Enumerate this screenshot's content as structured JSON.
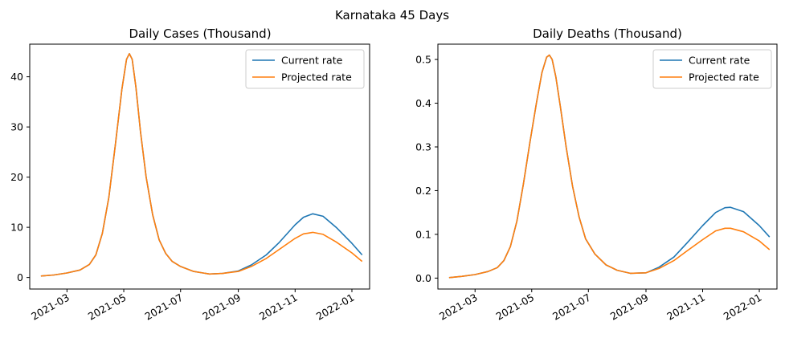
{
  "figure": {
    "suptitle": "Karnataka 45 Days"
  },
  "colors": {
    "current": "#1f77b4",
    "projected": "#ff7f0e",
    "axis": "#000000",
    "legend_border": "#cccccc"
  },
  "chart_data": [
    {
      "type": "line",
      "title": "Daily Cases (Thousand)",
      "xlabel": "",
      "ylabel": "",
      "x_tick_labels": [
        "2021-03",
        "2021-05",
        "2021-07",
        "2021-09",
        "2021-11",
        "2022-01"
      ],
      "y_ticks": [
        0,
        10,
        20,
        30,
        40
      ],
      "y_tick_labels": [
        "0",
        "10",
        "20",
        "30",
        "40"
      ],
      "xlim": [
        "2021-01-20",
        "2022-01-20"
      ],
      "ylim": [
        -2.3,
        46.5
      ],
      "grid": false,
      "legend": "top-right",
      "series": [
        {
          "name": "Current rate",
          "color": "#1f77b4",
          "x": [
            "2021-02-01",
            "2021-02-15",
            "2021-03-01",
            "2021-03-15",
            "2021-03-25",
            "2021-04-01",
            "2021-04-08",
            "2021-04-15",
            "2021-04-22",
            "2021-04-29",
            "2021-05-04",
            "2021-05-07",
            "2021-05-10",
            "2021-05-14",
            "2021-05-19",
            "2021-05-25",
            "2021-06-01",
            "2021-06-08",
            "2021-06-15",
            "2021-06-22",
            "2021-07-01",
            "2021-07-15",
            "2021-08-01",
            "2021-08-15",
            "2021-09-01",
            "2021-09-15",
            "2021-10-01",
            "2021-10-15",
            "2021-11-01",
            "2021-11-10",
            "2021-11-20",
            "2021-12-01",
            "2021-12-15",
            "2022-01-01",
            "2022-01-12"
          ],
          "y": [
            0.3,
            0.5,
            0.9,
            1.5,
            2.6,
            4.5,
            8.8,
            16,
            26.5,
            37.5,
            43.5,
            44.6,
            43.5,
            38,
            29,
            20,
            12.5,
            7.5,
            4.8,
            3.2,
            2.2,
            1.2,
            0.7,
            0.8,
            1.3,
            2.5,
            4.5,
            7,
            10.5,
            12,
            12.7,
            12.2,
            10,
            6.8,
            4.5
          ]
        },
        {
          "name": "Projected rate",
          "color": "#ff7f0e",
          "x": [
            "2021-02-01",
            "2021-02-15",
            "2021-03-01",
            "2021-03-15",
            "2021-03-25",
            "2021-04-01",
            "2021-04-08",
            "2021-04-15",
            "2021-04-22",
            "2021-04-29",
            "2021-05-04",
            "2021-05-07",
            "2021-05-10",
            "2021-05-14",
            "2021-05-19",
            "2021-05-25",
            "2021-06-01",
            "2021-06-08",
            "2021-06-15",
            "2021-06-22",
            "2021-07-01",
            "2021-07-15",
            "2021-08-01",
            "2021-08-15",
            "2021-09-01",
            "2021-09-15",
            "2021-10-01",
            "2021-10-15",
            "2021-11-01",
            "2021-11-10",
            "2021-11-20",
            "2021-12-01",
            "2021-12-15",
            "2022-01-01",
            "2022-01-12"
          ],
          "y": [
            0.3,
            0.5,
            0.9,
            1.5,
            2.6,
            4.5,
            8.8,
            16,
            26.5,
            37.5,
            43.5,
            44.6,
            43.5,
            38,
            29,
            20,
            12.5,
            7.5,
            4.8,
            3.2,
            2.2,
            1.2,
            0.7,
            0.8,
            1.2,
            2.2,
            3.8,
            5.6,
            7.8,
            8.7,
            9,
            8.6,
            7.1,
            4.9,
            3.2
          ]
        }
      ]
    },
    {
      "type": "line",
      "title": "Daily Deaths (Thousand)",
      "xlabel": "",
      "ylabel": "",
      "x_tick_labels": [
        "2021-03",
        "2021-05",
        "2021-07",
        "2021-09",
        "2021-11",
        "2022-01"
      ],
      "y_ticks": [
        0,
        0.1,
        0.2,
        0.3,
        0.4,
        0.5
      ],
      "y_tick_labels": [
        "0.0",
        "0.1",
        "0.2",
        "0.3",
        "0.4",
        "0.5"
      ],
      "xlim": [
        "2021-01-20",
        "2022-01-20"
      ],
      "ylim": [
        -0.025,
        0.535
      ],
      "grid": false,
      "legend": "top-right",
      "series": [
        {
          "name": "Current rate",
          "color": "#1f77b4",
          "x": [
            "2021-02-01",
            "2021-02-15",
            "2021-03-01",
            "2021-03-15",
            "2021-03-25",
            "2021-04-01",
            "2021-04-08",
            "2021-04-15",
            "2021-04-22",
            "2021-04-29",
            "2021-05-06",
            "2021-05-12",
            "2021-05-17",
            "2021-05-20",
            "2021-05-23",
            "2021-05-27",
            "2021-06-01",
            "2021-06-07",
            "2021-06-14",
            "2021-06-21",
            "2021-06-28",
            "2021-07-08",
            "2021-07-20",
            "2021-08-01",
            "2021-08-15",
            "2021-09-01",
            "2021-09-15",
            "2021-10-01",
            "2021-10-15",
            "2021-11-01",
            "2021-11-15",
            "2021-11-25",
            "2021-12-01",
            "2021-12-15",
            "2022-01-01",
            "2022-01-12"
          ],
          "y": [
            0.001,
            0.004,
            0.008,
            0.015,
            0.024,
            0.04,
            0.072,
            0.13,
            0.215,
            0.31,
            0.4,
            0.47,
            0.505,
            0.51,
            0.5,
            0.46,
            0.39,
            0.3,
            0.21,
            0.14,
            0.09,
            0.055,
            0.03,
            0.018,
            0.011,
            0.012,
            0.025,
            0.048,
            0.08,
            0.12,
            0.15,
            0.161,
            0.162,
            0.152,
            0.12,
            0.094
          ]
        },
        {
          "name": "Projected rate",
          "color": "#ff7f0e",
          "x": [
            "2021-02-01",
            "2021-02-15",
            "2021-03-01",
            "2021-03-15",
            "2021-03-25",
            "2021-04-01",
            "2021-04-08",
            "2021-04-15",
            "2021-04-22",
            "2021-04-29",
            "2021-05-06",
            "2021-05-12",
            "2021-05-17",
            "2021-05-20",
            "2021-05-23",
            "2021-05-27",
            "2021-06-01",
            "2021-06-07",
            "2021-06-14",
            "2021-06-21",
            "2021-06-28",
            "2021-07-08",
            "2021-07-20",
            "2021-08-01",
            "2021-08-15",
            "2021-09-01",
            "2021-09-15",
            "2021-10-01",
            "2021-10-15",
            "2021-11-01",
            "2021-11-15",
            "2021-11-25",
            "2021-12-01",
            "2021-12-15",
            "2022-01-01",
            "2022-01-12"
          ],
          "y": [
            0.001,
            0.004,
            0.008,
            0.015,
            0.024,
            0.04,
            0.072,
            0.13,
            0.215,
            0.31,
            0.4,
            0.47,
            0.505,
            0.51,
            0.5,
            0.46,
            0.39,
            0.3,
            0.21,
            0.14,
            0.09,
            0.055,
            0.03,
            0.018,
            0.011,
            0.012,
            0.022,
            0.04,
            0.062,
            0.088,
            0.108,
            0.114,
            0.114,
            0.106,
            0.085,
            0.065
          ]
        }
      ]
    }
  ]
}
